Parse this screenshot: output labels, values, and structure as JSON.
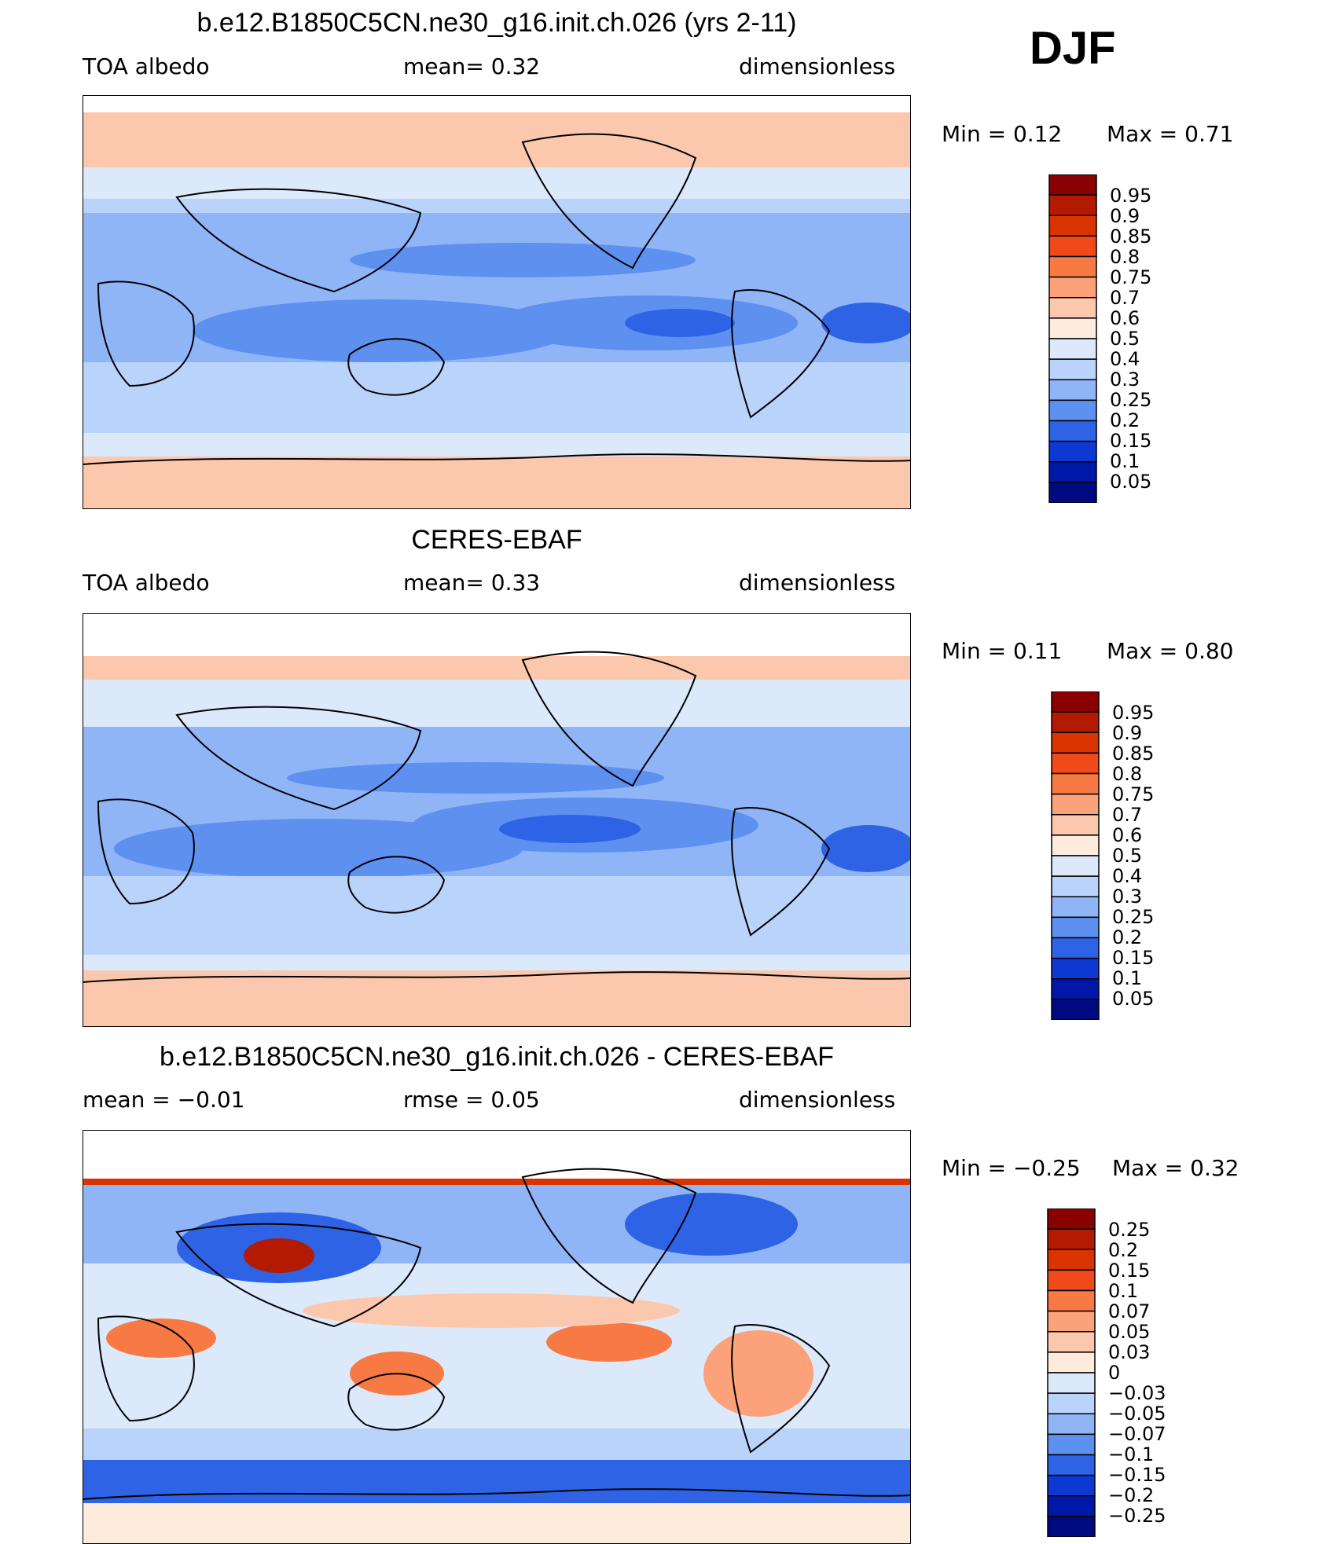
{
  "season": "DJF",
  "panels": [
    {
      "title": "b.e12.B1850C5CN.ne30_g16.init.ch.026 (yrs 2-11)",
      "left_label": "TOA  albedo",
      "center_label": "mean=    0.32",
      "right_label": "dimensionless",
      "min_text": "Min  =      0.12",
      "max_text": "Max  =      0.71",
      "colorbar_labels": [
        "0.95",
        "0.9",
        "0.85",
        "0.8",
        "0.75",
        "0.7",
        "0.6",
        "0.5",
        "0.4",
        "0.3",
        "0.25",
        "0.2",
        "0.15",
        "0.1",
        "0.05"
      ]
    },
    {
      "title": "CERES-EBAF",
      "left_label": "TOA  albedo",
      "center_label": "mean=    0.33",
      "right_label": "dimensionless",
      "min_text": "Min  =      0.11",
      "max_text": "Max  =      0.80",
      "colorbar_labels": [
        "0.95",
        "0.9",
        "0.85",
        "0.8",
        "0.75",
        "0.7",
        "0.6",
        "0.5",
        "0.4",
        "0.3",
        "0.25",
        "0.2",
        "0.15",
        "0.1",
        "0.05"
      ]
    },
    {
      "title": "b.e12.B1850C5CN.ne30_g16.init.ch.026 - CERES-EBAF",
      "left_label": "mean  =    −0.01",
      "center_label": "rmse  =     0.05",
      "right_label": "dimensionless",
      "min_text": "Min  =    −0.25",
      "max_text": "Max  =      0.32",
      "colorbar_labels": [
        "0.25",
        "0.2",
        "0.15",
        "0.1",
        "0.07",
        "0.05",
        "0.03",
        "0",
        "−0.03",
        "−0.05",
        "−0.07",
        "−0.1",
        "−0.15",
        "−0.2",
        "−0.25"
      ]
    }
  ],
  "colors": {
    "scale": [
      "#8b0000",
      "#b31a00",
      "#d93300",
      "#f04a1a",
      "#f77a45",
      "#fba27a",
      "#fcc8ad",
      "#fdebdc",
      "#dce9fb",
      "#b9d3fb",
      "#8fb5f7",
      "#5e90f0",
      "#2e63e6",
      "#0d38d1",
      "#0018a8",
      "#000a80"
    ],
    "land_outline": "#000000"
  }
}
